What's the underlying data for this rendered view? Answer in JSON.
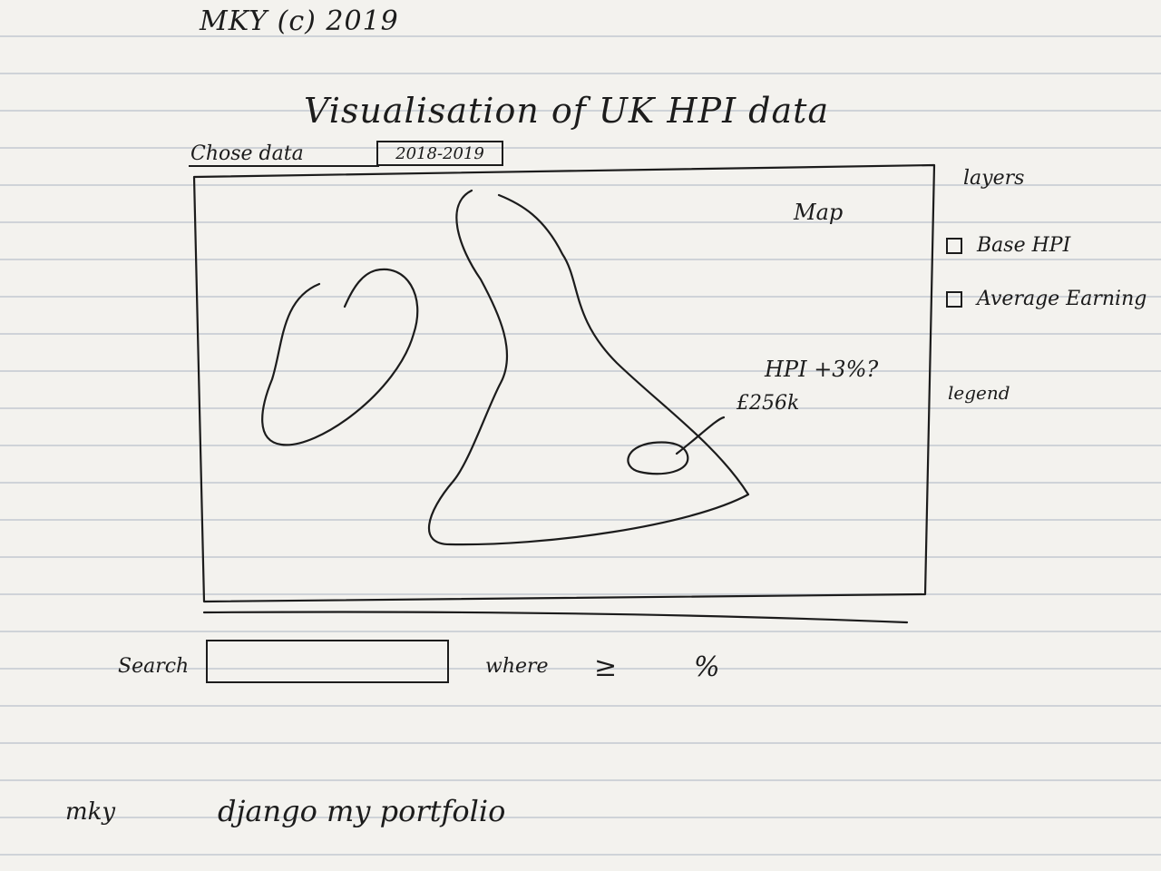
{
  "header": {
    "copyright": "MKY (c) 2019",
    "title": "Visualisation of UK HPI data"
  },
  "date_filter": {
    "label": "Chose data",
    "value": "2018-2019"
  },
  "map": {
    "label": "Map",
    "annotation_hpi": "HPI +3%?",
    "annotation_price": "£256k"
  },
  "layers": {
    "title": "layers",
    "items": [
      {
        "label": "Base HPI",
        "checked": false
      },
      {
        "label": "Average Earning",
        "checked": false
      }
    ]
  },
  "legend": {
    "label": "legend"
  },
  "search": {
    "label": "Search",
    "value": "",
    "where_label": "where",
    "operator": "≥",
    "unit": "%"
  },
  "footer": {
    "author": "mky",
    "project": "django my portfolio"
  }
}
